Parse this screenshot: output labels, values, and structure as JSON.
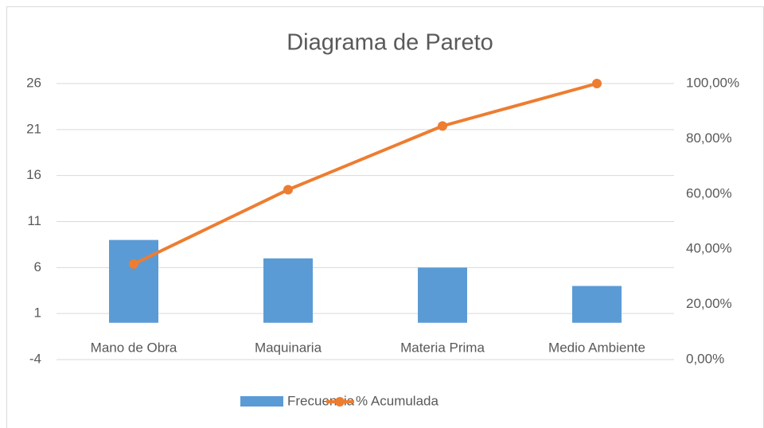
{
  "chart_data": {
    "type": "bar",
    "title": "Diagrama de Pareto",
    "categories": [
      "Mano de Obra",
      "Maquinaria",
      "Materia Prima",
      "Medio Ambiente"
    ],
    "series": [
      {
        "name": "Frecuencia",
        "type": "bar",
        "color": "#5b9bd5",
        "values": [
          9,
          7,
          6,
          4
        ]
      },
      {
        "name": "% Acumulada",
        "type": "line",
        "axis": "y2",
        "color": "#ed7d31",
        "values": [
          34.62,
          61.54,
          84.62,
          100
        ]
      }
    ],
    "ylim": [
      -4,
      26
    ],
    "yticks": [
      -4,
      1,
      6,
      11,
      16,
      21,
      26
    ],
    "y2lim": [
      0,
      100
    ],
    "y2ticks": [
      {
        "value": 0,
        "label": "0,00%"
      },
      {
        "value": 20,
        "label": "20,00%"
      },
      {
        "value": 40,
        "label": "40,00%"
      },
      {
        "value": 60,
        "label": "60,00%"
      },
      {
        "value": 80,
        "label": "80,00%"
      },
      {
        "value": 100,
        "label": "100,00%"
      }
    ],
    "grid": true,
    "legend": "bottom"
  }
}
